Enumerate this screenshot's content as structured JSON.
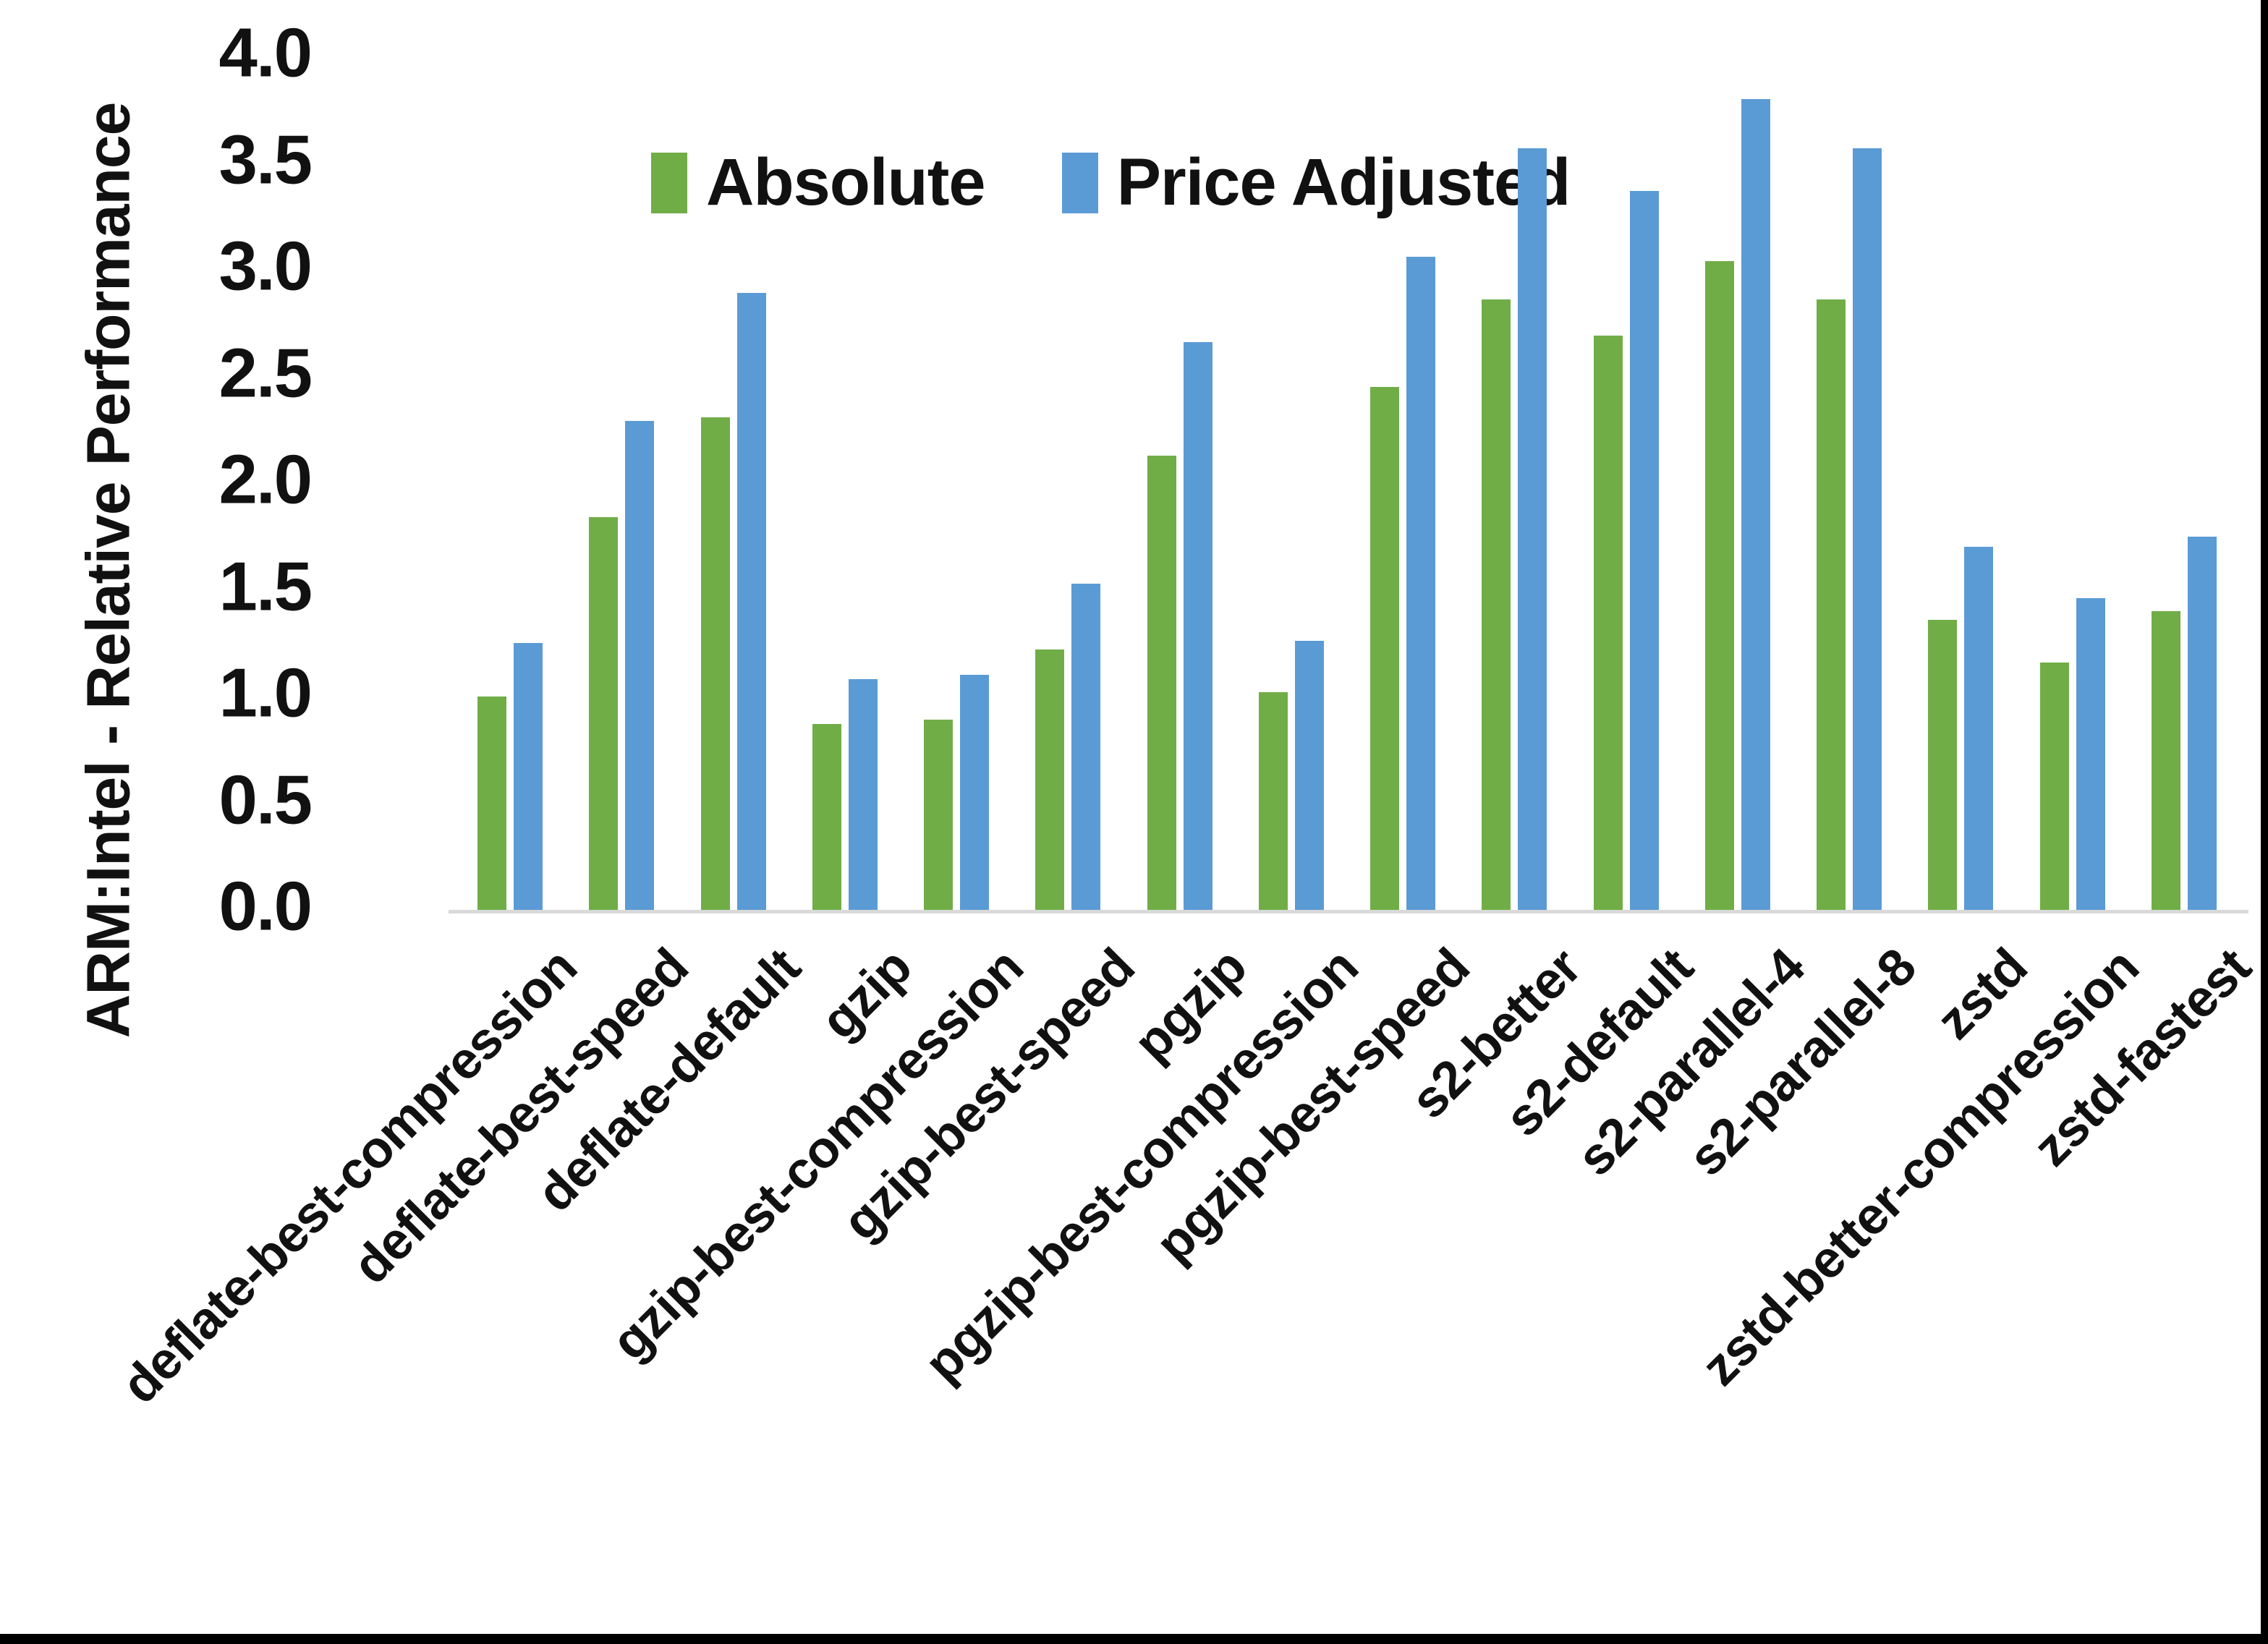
{
  "figure": {
    "background": "#ffffff",
    "border_color": "#000000"
  },
  "chart_data": {
    "type": "bar",
    "title": "",
    "xlabel": "",
    "ylabel": "ARM:Intel - Relative Performance",
    "ylim": [
      0.0,
      4.0
    ],
    "ytick_step": 0.5,
    "grid": false,
    "legend_position": "top-center",
    "ytick_labels": [
      "4.0",
      "3.5",
      "3.0",
      "2.5",
      "2.0",
      "1.5",
      "1.0",
      "0.5",
      "0.0"
    ],
    "categories": [
      "deflate-best-compression",
      "deflate-best-speed",
      "deflate-default",
      "gzip",
      "gzip-best-compression",
      "gzip-best-speed",
      "pgzip",
      "pgzip-best-compression",
      "pgzip-best-speed",
      "s2-better",
      "s2-default",
      "s2-parallel-4",
      "s2-parallel-8",
      "zstd",
      "zstd-better-compression",
      "zstd-fastest"
    ],
    "series": [
      {
        "name": "Absolute",
        "color": "#70AD47",
        "values": [
          1.0,
          1.84,
          2.31,
          0.87,
          0.89,
          1.22,
          2.13,
          1.02,
          2.45,
          2.86,
          2.69,
          3.04,
          2.86,
          1.36,
          1.16,
          1.4
        ]
      },
      {
        "name": "Price Adjusted",
        "color": "#5B9BD5",
        "values": [
          1.25,
          2.29,
          2.89,
          1.08,
          1.1,
          1.53,
          2.66,
          1.26,
          3.06,
          3.57,
          3.37,
          3.8,
          3.57,
          1.7,
          1.46,
          1.75
        ]
      }
    ]
  }
}
